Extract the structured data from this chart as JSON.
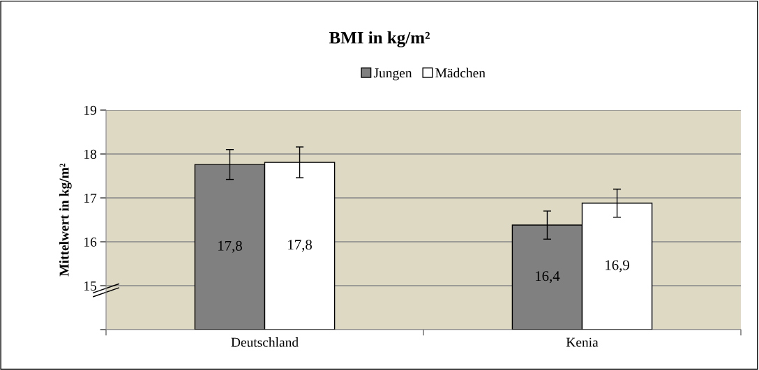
{
  "chart_data": {
    "type": "bar",
    "title": "BMI in kg/m²",
    "ylabel": "Mittelwert in kg/m²",
    "categories": [
      "Deutschland",
      "Kenia"
    ],
    "series": [
      {
        "name": "Jungen",
        "color": "#808080",
        "values": [
          17.76,
          16.38
        ],
        "errors": [
          0.34,
          0.32
        ],
        "value_labels": [
          "17,8",
          "16,4"
        ]
      },
      {
        "name": "Mädchen",
        "color": "#ffffff",
        "values": [
          17.81,
          16.88
        ],
        "errors": [
          0.35,
          0.32
        ],
        "value_labels": [
          "17,8",
          "16,9"
        ]
      }
    ],
    "ylim": [
      14,
      19
    ],
    "yticks": [
      {
        "value": 14,
        "label": null
      },
      15,
      16,
      17,
      18,
      19
    ],
    "grid": "y",
    "legend": "top"
  }
}
